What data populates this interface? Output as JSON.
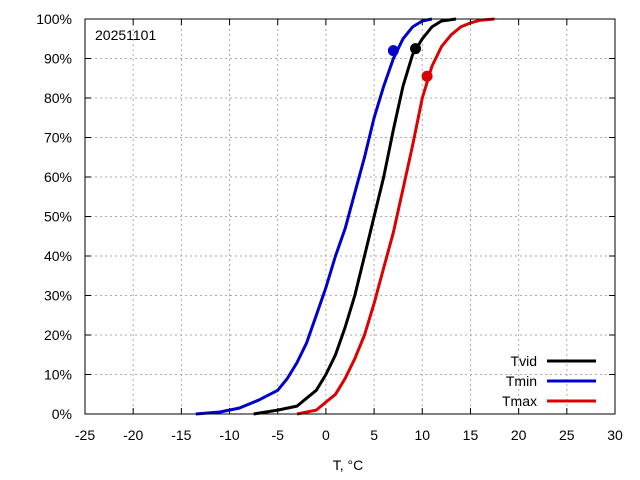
{
  "chart_data": {
    "type": "line",
    "title": "",
    "annotation": "20251101",
    "xlabel": "T, °C",
    "ylabel": "",
    "xlim": [
      -25,
      30
    ],
    "ylim": [
      0,
      100
    ],
    "x_ticks": [
      -25,
      -20,
      -15,
      -10,
      -5,
      0,
      5,
      10,
      15,
      20,
      25,
      30
    ],
    "x_tick_labels": [
      "-25",
      "-20",
      "-15",
      "-10",
      "-5",
      "0",
      "5",
      "10",
      "15",
      "20",
      "25",
      "30"
    ],
    "y_ticks": [
      0,
      10,
      20,
      30,
      40,
      50,
      60,
      70,
      80,
      90,
      100
    ],
    "y_tick_labels": [
      "0%",
      "10%",
      "20%",
      "30%",
      "40%",
      "50%",
      "60%",
      "70%",
      "80%",
      "90%",
      "100%"
    ],
    "grid": true,
    "legend_position": "bottom-right",
    "series": [
      {
        "name": "Tvid",
        "color": "#000000",
        "x": [
          -7.5,
          -5,
          -3,
          -2,
          -1,
          0,
          1,
          2,
          3,
          4,
          5,
          6,
          7,
          8,
          9,
          10,
          11,
          12,
          13.5
        ],
        "y": [
          0,
          1,
          2,
          4,
          6,
          10,
          15,
          22,
          30,
          40,
          50,
          60,
          72,
          83,
          91,
          95,
          98,
          99.5,
          100
        ],
        "marker": {
          "x": 9.3,
          "y": 92.5
        }
      },
      {
        "name": "Tmin",
        "color": "#0000cc",
        "x": [
          -13.5,
          -11,
          -9,
          -7,
          -5,
          -4,
          -3,
          -2,
          -1,
          0,
          1,
          2,
          3,
          4,
          5,
          6,
          7,
          8,
          9,
          10,
          11
        ],
        "y": [
          0,
          0.5,
          1.5,
          3.5,
          6,
          9,
          13,
          18,
          25,
          32,
          40,
          47,
          56,
          65,
          75,
          83,
          90,
          95,
          98,
          99.5,
          100
        ],
        "marker": {
          "x": 7.0,
          "y": 92
        }
      },
      {
        "name": "Tmax",
        "color": "#dd0000",
        "x": [
          -3,
          -1,
          0,
          1,
          2,
          3,
          4,
          5,
          6,
          7,
          8,
          9,
          10,
          11,
          12,
          13,
          14,
          15,
          16,
          17.5
        ],
        "y": [
          0,
          1,
          3,
          5,
          9,
          14,
          20,
          28,
          37,
          46,
          57,
          68,
          80,
          88,
          93,
          96,
          98,
          99,
          99.7,
          100
        ],
        "marker": {
          "x": 10.5,
          "y": 85.5
        }
      }
    ]
  }
}
